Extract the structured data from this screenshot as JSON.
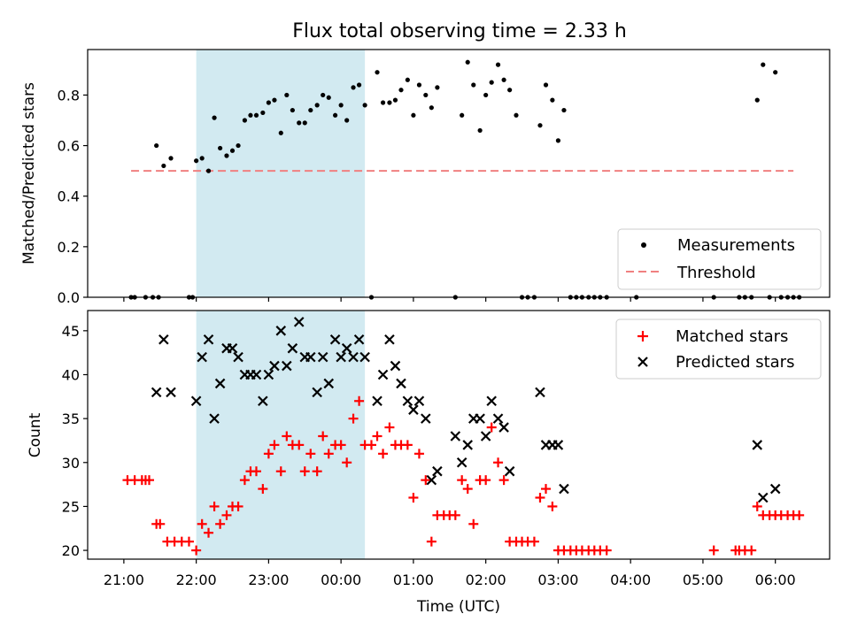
{
  "chart_data": [
    {
      "type": "scatter",
      "title": "Flux total observing time = 2.33 h",
      "xlabel": "",
      "ylabel": "Matched/Predicted stars",
      "xlim": [
        20.5,
        30.75
      ],
      "ylim": [
        0,
        0.98
      ],
      "yticks": [
        0.0,
        0.2,
        0.4,
        0.6,
        0.8
      ],
      "ytick_labels": [
        "0.0",
        "0.2",
        "0.4",
        "0.6",
        "0.8"
      ],
      "xticks": [
        21,
        22,
        23,
        24,
        25,
        26,
        27,
        28,
        29,
        30
      ],
      "shaded_interval": {
        "start": 22.0,
        "end": 24.33,
        "color": "#add8e6"
      },
      "threshold": {
        "name": "Threshold",
        "value": 0.5,
        "x_start": 21.1,
        "x_end": 30.25,
        "color": "#f08080",
        "style": "dashed"
      },
      "legend": {
        "location": "lower right",
        "entries": [
          "Measurements",
          "Threshold"
        ]
      },
      "series": [
        {
          "name": "Measurements",
          "color": "#000000",
          "marker": "dot",
          "x": [
            21.1,
            21.15,
            21.3,
            21.4,
            21.45,
            21.48,
            21.55,
            21.65,
            21.9,
            21.95,
            22.0,
            22.08,
            22.17,
            22.25,
            22.33,
            22.42,
            22.5,
            22.58,
            22.67,
            22.75,
            22.83,
            22.92,
            23.0,
            23.08,
            23.17,
            23.25,
            23.33,
            23.42,
            23.5,
            23.58,
            23.67,
            23.75,
            23.83,
            23.92,
            24.0,
            24.08,
            24.17,
            24.25,
            24.33,
            24.42,
            24.5,
            24.58,
            24.67,
            24.75,
            24.83,
            24.92,
            25.0,
            25.08,
            25.17,
            25.25,
            25.33,
            25.58,
            25.67,
            25.75,
            25.83,
            25.92,
            26.0,
            26.08,
            26.17,
            26.25,
            26.33,
            26.42,
            26.5,
            26.58,
            26.67,
            26.75,
            26.83,
            26.92,
            27.0,
            27.08,
            27.17,
            27.25,
            27.33,
            27.42,
            27.5,
            27.58,
            27.67,
            28.08,
            29.15,
            29.5,
            29.58,
            29.67,
            29.75,
            29.83,
            29.92,
            30.0,
            30.08,
            30.17,
            30.25,
            30.33
          ],
          "y": [
            0.0,
            0.0,
            0.0,
            0.0,
            0.6,
            0.0,
            0.52,
            0.55,
            0.0,
            0.0,
            0.54,
            0.55,
            0.5,
            0.71,
            0.59,
            0.56,
            0.58,
            0.6,
            0.7,
            0.72,
            0.72,
            0.73,
            0.77,
            0.78,
            0.65,
            0.8,
            0.74,
            0.69,
            0.69,
            0.74,
            0.76,
            0.8,
            0.79,
            0.72,
            0.76,
            0.7,
            0.83,
            0.84,
            0.76,
            0.0,
            0.89,
            0.77,
            0.77,
            0.78,
            0.82,
            0.86,
            0.72,
            0.84,
            0.8,
            0.75,
            0.83,
            0.0,
            0.72,
            0.93,
            0.84,
            0.66,
            0.8,
            0.85,
            0.92,
            0.86,
            0.82,
            0.72,
            0.0,
            0.0,
            0.0,
            0.68,
            0.84,
            0.78,
            0.62,
            0.74,
            0.0,
            0.0,
            0.0,
            0.0,
            0.0,
            0.0,
            0.0,
            0.0,
            0.0,
            0.0,
            0.0,
            0.0,
            0.78,
            0.92,
            0.0,
            0.89,
            0.0,
            0.0,
            0.0,
            0.0
          ]
        }
      ]
    },
    {
      "type": "scatter",
      "title": "",
      "xlabel": "Time (UTC)",
      "ylabel": "Count",
      "xlim": [
        20.5,
        30.75
      ],
      "ylim": [
        19,
        47.3
      ],
      "yticks": [
        20,
        25,
        30,
        35,
        40,
        45
      ],
      "ytick_labels": [
        "20",
        "25",
        "30",
        "35",
        "40",
        "45"
      ],
      "xticks": [
        21,
        22,
        23,
        24,
        25,
        26,
        27,
        28,
        29,
        30
      ],
      "xtick_labels": [
        "21:00",
        "22:00",
        "23:00",
        "00:00",
        "01:00",
        "02:00",
        "03:00",
        "04:00",
        "05:00",
        "06:00"
      ],
      "shaded_interval": {
        "start": 22.0,
        "end": 24.33,
        "color": "#add8e6"
      },
      "legend": {
        "location": "upper right",
        "entries": [
          "Matched stars",
          "Predicted stars"
        ]
      },
      "series": [
        {
          "name": "Matched stars",
          "color": "#ff0000",
          "marker": "plus",
          "x": [
            21.05,
            21.15,
            21.25,
            21.3,
            21.35,
            21.45,
            21.5,
            21.6,
            21.7,
            21.8,
            21.9,
            22.0,
            22.08,
            22.17,
            22.25,
            22.33,
            22.42,
            22.5,
            22.58,
            22.67,
            22.75,
            22.83,
            22.92,
            23.0,
            23.08,
            23.17,
            23.25,
            23.33,
            23.42,
            23.5,
            23.58,
            23.67,
            23.75,
            23.83,
            23.92,
            24.0,
            24.08,
            24.17,
            24.25,
            24.33,
            24.42,
            24.5,
            24.58,
            24.67,
            24.75,
            24.83,
            24.92,
            25.0,
            25.08,
            25.17,
            25.25,
            25.33,
            25.42,
            25.5,
            25.58,
            25.67,
            25.75,
            25.83,
            25.92,
            26.0,
            26.08,
            26.17,
            26.25,
            26.33,
            26.42,
            26.5,
            26.58,
            26.67,
            26.75,
            26.83,
            26.92,
            27.0,
            27.08,
            27.17,
            27.25,
            27.33,
            27.42,
            27.5,
            27.58,
            27.67,
            29.15,
            29.45,
            29.5,
            29.58,
            29.67,
            29.75,
            29.83,
            29.92,
            30.0,
            30.08,
            30.17,
            30.25,
            30.33
          ],
          "y": [
            28,
            28,
            28,
            28,
            28,
            23,
            23,
            21,
            21,
            21,
            21,
            20,
            23,
            22,
            25,
            23,
            24,
            25,
            25,
            28,
            29,
            29,
            27,
            31,
            32,
            29,
            33,
            32,
            32,
            29,
            31,
            29,
            33,
            31,
            32,
            32,
            30,
            35,
            37,
            32,
            32,
            33,
            31,
            34,
            32,
            32,
            32,
            26,
            31,
            28,
            21,
            24,
            24,
            24,
            24,
            28,
            27,
            23,
            28,
            28,
            34,
            30,
            28,
            21,
            21,
            21,
            21,
            21,
            26,
            27,
            25,
            20,
            20,
            20,
            20,
            20,
            20,
            20,
            20,
            20,
            20,
            20,
            20,
            20,
            20,
            25,
            24,
            24,
            24,
            24,
            24,
            24,
            24
          ]
        },
        {
          "name": "Predicted stars",
          "color": "#000000",
          "marker": "x",
          "x": [
            21.45,
            21.55,
            21.65,
            22.0,
            22.08,
            22.17,
            22.25,
            22.33,
            22.42,
            22.5,
            22.58,
            22.67,
            22.75,
            22.83,
            22.92,
            23.0,
            23.08,
            23.17,
            23.25,
            23.33,
            23.42,
            23.5,
            23.58,
            23.67,
            23.75,
            23.83,
            23.92,
            24.0,
            24.08,
            24.17,
            24.25,
            24.33,
            24.5,
            24.58,
            24.67,
            24.75,
            24.83,
            24.92,
            25.0,
            25.08,
            25.17,
            25.25,
            25.33,
            25.58,
            25.67,
            25.75,
            25.83,
            25.92,
            26.0,
            26.08,
            26.17,
            26.25,
            26.33,
            26.75,
            26.83,
            26.92,
            27.0,
            27.08,
            29.75,
            29.83,
            30.0
          ],
          "y": [
            38,
            44,
            38,
            37,
            42,
            44,
            35,
            39,
            43,
            43,
            42,
            40,
            40,
            40,
            37,
            40,
            41,
            45,
            41,
            43,
            46,
            42,
            42,
            38,
            42,
            39,
            44,
            42,
            43,
            42,
            44,
            42,
            37,
            40,
            44,
            41,
            39,
            37,
            36,
            37,
            35,
            28,
            29,
            33,
            30,
            32,
            35,
            35,
            33,
            37,
            35,
            34,
            29,
            38,
            32,
            32,
            32,
            27,
            32,
            26,
            27
          ]
        }
      ]
    }
  ]
}
